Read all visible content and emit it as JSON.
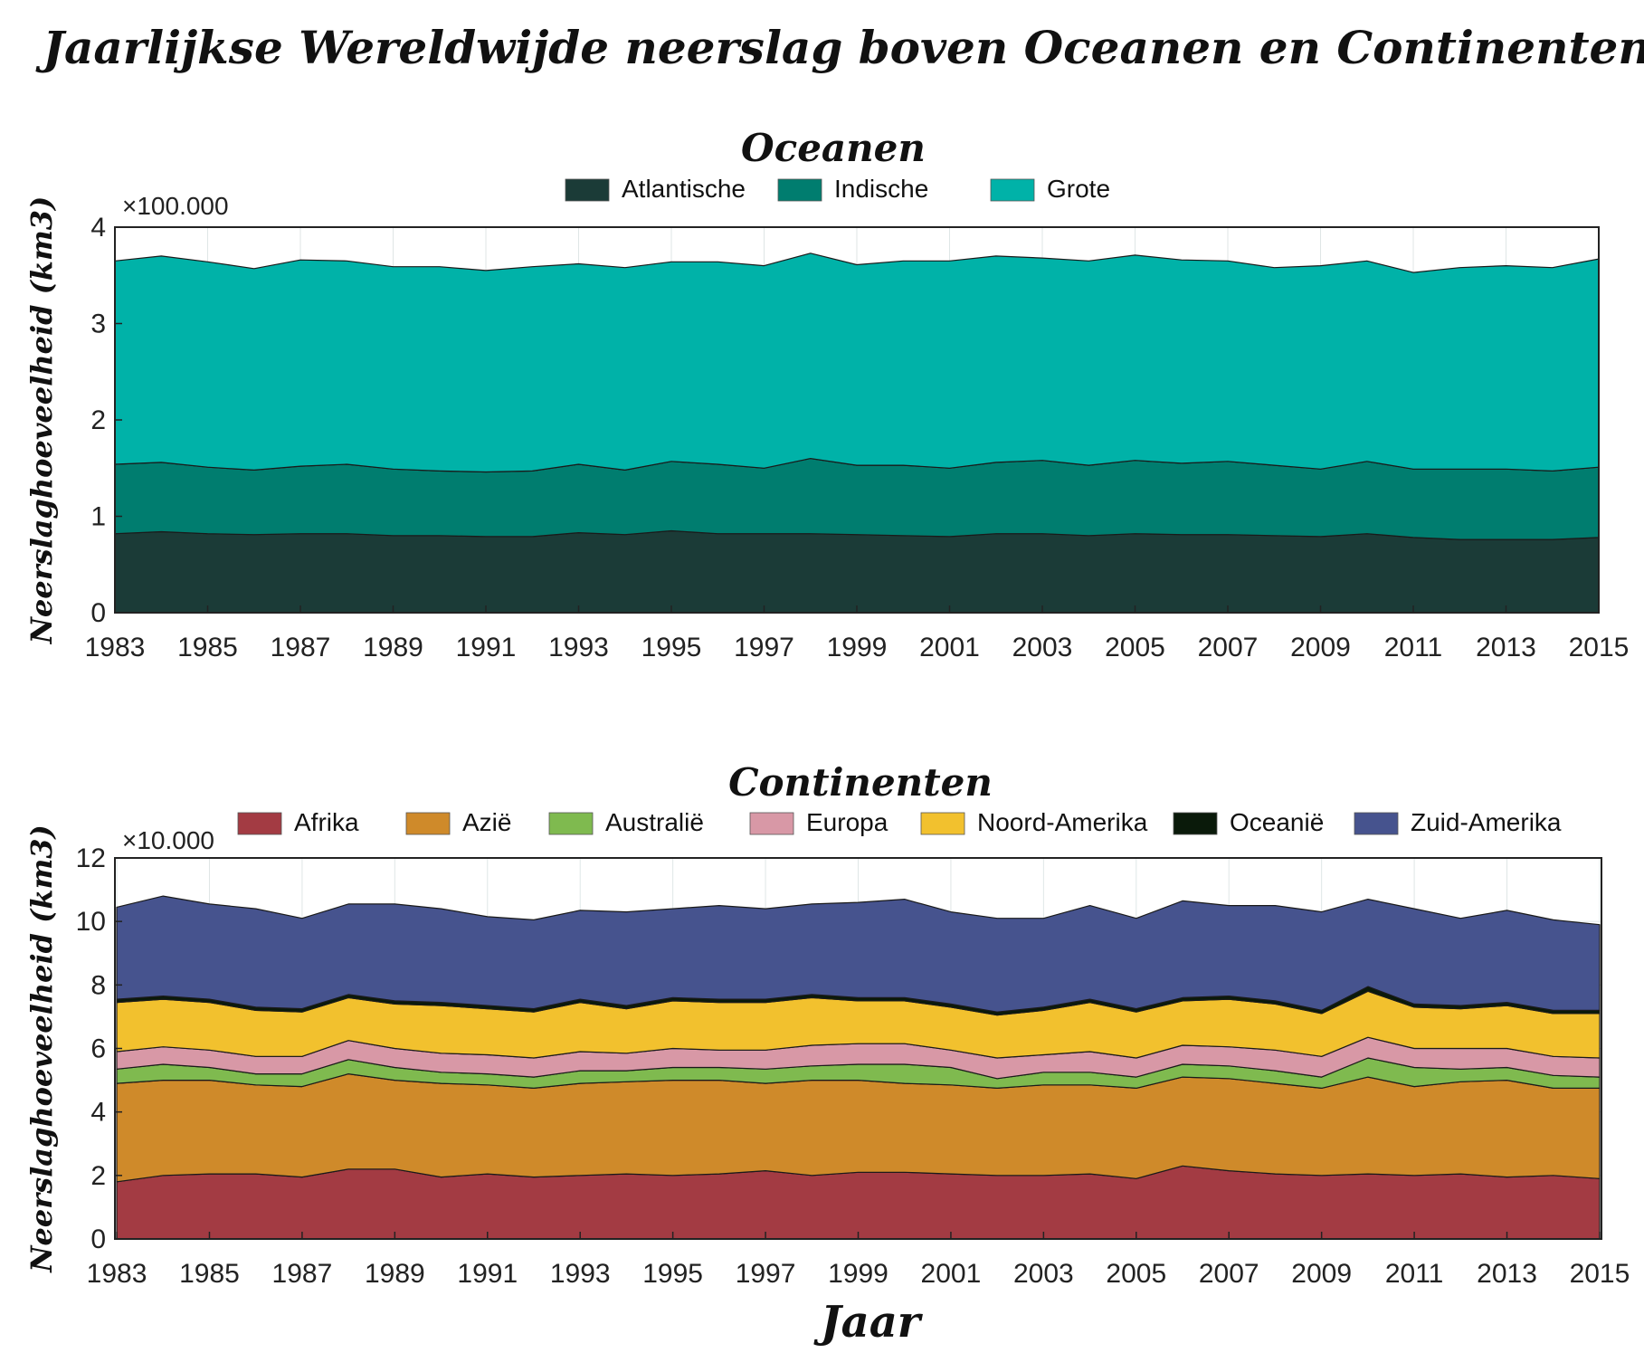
{
  "title": "Jaarlijkse Wereldwijde neerslag boven Oceanen en Continenten",
  "xlabel": "Jaar",
  "chart_data": [
    {
      "type": "area",
      "stacked": true,
      "title": "Oceanen",
      "ylabel": "Neerslaghoeveelheid (km3)",
      "y_multiplier_label": "×100.000",
      "ylim": [
        0,
        4
      ],
      "yticks": [
        0,
        1,
        2,
        3,
        4
      ],
      "xlim": [
        1983,
        2015
      ],
      "xticks": [
        1983,
        1985,
        1987,
        1989,
        1991,
        1993,
        1995,
        1997,
        1999,
        2001,
        2003,
        2005,
        2007,
        2009,
        2011,
        2013,
        2015
      ],
      "grid": true,
      "legend_position": "top",
      "x": [
        1983,
        1984,
        1985,
        1986,
        1987,
        1988,
        1989,
        1990,
        1991,
        1992,
        1993,
        1994,
        1995,
        1996,
        1997,
        1998,
        1999,
        2000,
        2001,
        2002,
        2003,
        2004,
        2005,
        2006,
        2007,
        2008,
        2009,
        2010,
        2011,
        2012,
        2013,
        2014,
        2015
      ],
      "series": [
        {
          "name": "Atlantische",
          "color": "#1b3b37",
          "values": [
            0.82,
            0.84,
            0.82,
            0.81,
            0.82,
            0.82,
            0.8,
            0.8,
            0.79,
            0.79,
            0.83,
            0.81,
            0.85,
            0.82,
            0.82,
            0.82,
            0.81,
            0.8,
            0.79,
            0.82,
            0.82,
            0.8,
            0.82,
            0.81,
            0.81,
            0.8,
            0.79,
            0.82,
            0.78,
            0.76,
            0.76,
            0.76,
            0.78
          ]
        },
        {
          "name": "Indische",
          "color": "#007d6f",
          "values": [
            0.72,
            0.72,
            0.69,
            0.67,
            0.7,
            0.72,
            0.69,
            0.67,
            0.67,
            0.68,
            0.71,
            0.67,
            0.72,
            0.72,
            0.68,
            0.78,
            0.72,
            0.73,
            0.71,
            0.74,
            0.76,
            0.73,
            0.76,
            0.74,
            0.76,
            0.73,
            0.7,
            0.75,
            0.71,
            0.73,
            0.73,
            0.71,
            0.73
          ]
        },
        {
          "name": "Grote",
          "color": "#00b2a8",
          "values": [
            2.11,
            2.14,
            2.13,
            2.09,
            2.14,
            2.11,
            2.1,
            2.12,
            2.09,
            2.12,
            2.08,
            2.1,
            2.07,
            2.1,
            2.1,
            2.13,
            2.08,
            2.12,
            2.15,
            2.14,
            2.1,
            2.12,
            2.13,
            2.11,
            2.08,
            2.05,
            2.11,
            2.08,
            2.04,
            2.09,
            2.11,
            2.11,
            2.16
          ]
        }
      ]
    },
    {
      "type": "area",
      "stacked": true,
      "title": "Continenten",
      "ylabel": "Neerslaghoeveelheid (km3)",
      "y_multiplier_label": "×10.000",
      "ylim": [
        0,
        12
      ],
      "yticks": [
        0,
        2,
        4,
        6,
        8,
        10,
        12
      ],
      "xlim": [
        1982.96,
        2015.04
      ],
      "xticks": [
        1983,
        1985,
        1987,
        1989,
        1991,
        1993,
        1995,
        1997,
        1999,
        2001,
        2003,
        2005,
        2007,
        2009,
        2011,
        2013,
        2015
      ],
      "grid": true,
      "legend_position": "top",
      "x": [
        1983,
        1984,
        1985,
        1986,
        1987,
        1988,
        1989,
        1990,
        1991,
        1992,
        1993,
        1994,
        1995,
        1996,
        1997,
        1998,
        1999,
        2000,
        2001,
        2002,
        2003,
        2004,
        2005,
        2006,
        2007,
        2008,
        2009,
        2010,
        2011,
        2012,
        2013,
        2014,
        2015
      ],
      "series": [
        {
          "name": "Afrika",
          "color": "#a33b43",
          "values": [
            1.8,
            2.0,
            2.05,
            2.05,
            1.95,
            2.2,
            2.2,
            1.95,
            2.05,
            1.95,
            2.0,
            2.05,
            2.0,
            2.05,
            2.15,
            2.0,
            2.1,
            2.1,
            2.05,
            2.0,
            2.0,
            2.05,
            1.9,
            2.3,
            2.15,
            2.05,
            2.0,
            2.05,
            2.0,
            2.05,
            1.95,
            2.0,
            1.9
          ]
        },
        {
          "name": "Azië",
          "color": "#cf8a2a",
          "values": [
            3.1,
            3.0,
            2.95,
            2.8,
            2.85,
            3.0,
            2.8,
            2.95,
            2.8,
            2.8,
            2.9,
            2.9,
            3.0,
            2.95,
            2.75,
            3.0,
            2.9,
            2.8,
            2.8,
            2.75,
            2.85,
            2.8,
            2.85,
            2.8,
            2.9,
            2.85,
            2.75,
            3.05,
            2.8,
            2.9,
            3.05,
            2.75,
            2.85
          ]
        },
        {
          "name": "Australië",
          "color": "#7fba4f",
          "values": [
            0.45,
            0.5,
            0.4,
            0.35,
            0.4,
            0.45,
            0.4,
            0.35,
            0.35,
            0.35,
            0.4,
            0.35,
            0.4,
            0.4,
            0.45,
            0.45,
            0.5,
            0.6,
            0.55,
            0.3,
            0.4,
            0.4,
            0.35,
            0.4,
            0.4,
            0.4,
            0.35,
            0.6,
            0.6,
            0.4,
            0.4,
            0.4,
            0.35
          ]
        },
        {
          "name": "Europa",
          "color": "#d898a6",
          "values": [
            0.55,
            0.55,
            0.55,
            0.55,
            0.55,
            0.6,
            0.6,
            0.6,
            0.6,
            0.6,
            0.6,
            0.55,
            0.6,
            0.55,
            0.6,
            0.65,
            0.65,
            0.65,
            0.55,
            0.65,
            0.55,
            0.65,
            0.6,
            0.6,
            0.6,
            0.65,
            0.65,
            0.65,
            0.6,
            0.65,
            0.6,
            0.6,
            0.6
          ]
        },
        {
          "name": "Noord-Amerika",
          "color": "#f2c12e",
          "values": [
            1.55,
            1.5,
            1.5,
            1.45,
            1.4,
            1.35,
            1.4,
            1.5,
            1.45,
            1.45,
            1.55,
            1.4,
            1.5,
            1.5,
            1.5,
            1.5,
            1.35,
            1.35,
            1.35,
            1.35,
            1.4,
            1.55,
            1.45,
            1.4,
            1.5,
            1.45,
            1.35,
            1.45,
            1.3,
            1.25,
            1.35,
            1.35,
            1.4
          ]
        },
        {
          "name": "Oceanië",
          "color": "#0a1a0a",
          "values": [
            0.1,
            0.1,
            0.1,
            0.1,
            0.1,
            0.1,
            0.1,
            0.1,
            0.1,
            0.1,
            0.1,
            0.1,
            0.1,
            0.1,
            0.1,
            0.1,
            0.1,
            0.1,
            0.1,
            0.1,
            0.1,
            0.1,
            0.1,
            0.1,
            0.1,
            0.1,
            0.1,
            0.15,
            0.1,
            0.1,
            0.1,
            0.1,
            0.1
          ]
        },
        {
          "name": "Zuid-Amerika",
          "color": "#46538e",
          "values": [
            2.9,
            3.15,
            3.0,
            3.1,
            2.85,
            2.85,
            3.05,
            2.95,
            2.8,
            2.8,
            2.8,
            2.95,
            2.8,
            2.95,
            2.85,
            2.85,
            3.0,
            3.1,
            2.9,
            2.95,
            2.8,
            2.95,
            2.85,
            3.05,
            2.85,
            3.0,
            3.1,
            2.75,
            3.0,
            2.75,
            2.9,
            2.85,
            2.7
          ]
        }
      ]
    }
  ]
}
